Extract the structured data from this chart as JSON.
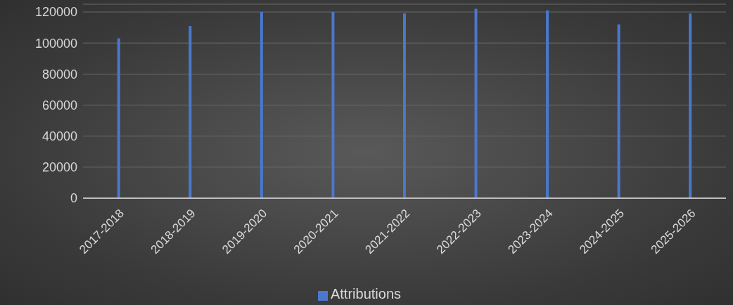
{
  "chart_data": {
    "type": "bar",
    "categories": [
      "2017-2018",
      "2018-2019",
      "2019-2020",
      "2020-2021",
      "2021-2022",
      "2022-2023",
      "2023-2024",
      "2024-2025",
      "2025-2026"
    ],
    "series": [
      {
        "name": "Attributions",
        "color": "#4a78cc",
        "values": [
          103000,
          111000,
          120000,
          120000,
          119000,
          122000,
          121000,
          112000,
          119000
        ]
      }
    ],
    "ylim": [
      0,
      125000
    ],
    "yticks": [
      0,
      20000,
      40000,
      60000,
      80000,
      100000,
      120000
    ],
    "grid": "y",
    "legend": "bottom"
  }
}
